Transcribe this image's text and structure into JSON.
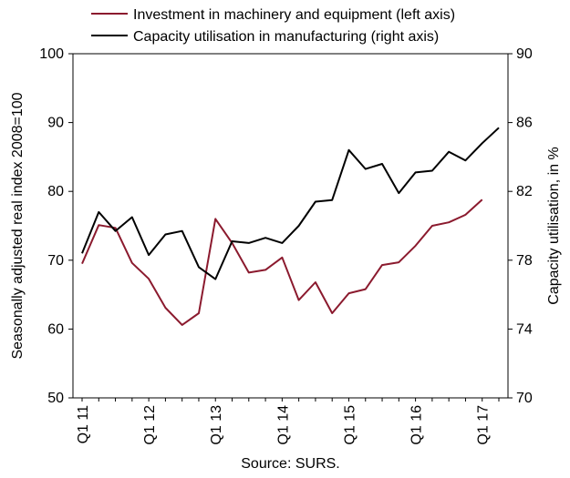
{
  "chart_data": {
    "type": "line",
    "x": [
      "Q1 11",
      "Q2 11",
      "Q3 11",
      "Q4 11",
      "Q1 12",
      "Q2 12",
      "Q3 12",
      "Q4 12",
      "Q1 13",
      "Q2 13",
      "Q3 13",
      "Q4 13",
      "Q1 14",
      "Q2 14",
      "Q3 14",
      "Q4 14",
      "Q1 15",
      "Q2 15",
      "Q3 15",
      "Q4 15",
      "Q1 16",
      "Q2 16",
      "Q3 16",
      "Q4 16",
      "Q1 17",
      "Q2 17"
    ],
    "x_tick_labels": [
      "Q1 11",
      "Q1 12",
      "Q1 13",
      "Q1 14",
      "Q1 15",
      "Q1 16",
      "Q1 17"
    ],
    "series": [
      {
        "name": "Investment in machinery and equipment (left axis)",
        "axis": "left",
        "color": "#8B1A2E",
        "values": [
          69.5,
          75.1,
          74.7,
          69.6,
          67.3,
          63.1,
          60.6,
          62.3,
          76.0,
          72.5,
          68.2,
          68.6,
          70.4,
          64.2,
          66.8,
          62.3,
          65.2,
          65.8,
          69.3,
          69.7,
          72.1,
          75.0,
          75.5,
          76.6,
          78.8,
          null
        ]
      },
      {
        "name": "Capacity utilisation in manufacturing (right axis)",
        "axis": "right",
        "color": "#000000",
        "values": [
          78.4,
          80.8,
          79.7,
          80.5,
          78.3,
          79.5,
          79.7,
          77.6,
          76.9,
          79.1,
          79.0,
          79.3,
          79.0,
          80.0,
          81.4,
          81.5,
          84.4,
          83.3,
          83.6,
          81.9,
          83.1,
          83.2,
          84.3,
          83.8,
          84.8,
          85.7
        ]
      }
    ],
    "y_left": {
      "label": "Seasonally adjusted real index 2008=100",
      "ylim": [
        50,
        100
      ],
      "ticks": [
        "50",
        "60",
        "70",
        "80",
        "90",
        "100"
      ]
    },
    "y_right": {
      "label": "Capacity utilisation, in %",
      "ylim": [
        70,
        90
      ],
      "ticks": [
        "70",
        "74",
        "78",
        "82",
        "86",
        "90"
      ]
    },
    "grid": false,
    "legend_placement": "top",
    "source": "Source: SURS."
  }
}
